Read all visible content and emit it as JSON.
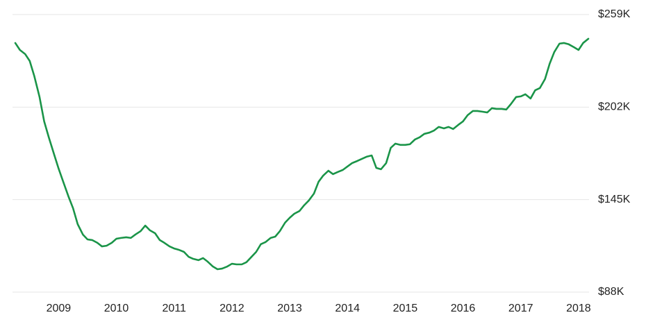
{
  "chart_data": {
    "type": "line",
    "color": "#1a9448",
    "grid": true,
    "x": [
      2008.25,
      2008.33,
      2008.42,
      2008.5,
      2008.58,
      2008.67,
      2008.75,
      2008.83,
      2008.92,
      2009,
      2009.08,
      2009.17,
      2009.25,
      2009.33,
      2009.42,
      2009.5,
      2009.58,
      2009.67,
      2009.75,
      2009.83,
      2009.92,
      2010,
      2010.08,
      2010.17,
      2010.25,
      2010.33,
      2010.42,
      2010.5,
      2010.58,
      2010.67,
      2010.75,
      2010.83,
      2010.92,
      2011,
      2011.08,
      2011.17,
      2011.25,
      2011.33,
      2011.42,
      2011.5,
      2011.58,
      2011.67,
      2011.75,
      2011.83,
      2011.92,
      2012,
      2012.08,
      2012.17,
      2012.25,
      2012.33,
      2012.42,
      2012.5,
      2012.58,
      2012.67,
      2012.75,
      2012.83,
      2012.92,
      2013,
      2013.08,
      2013.17,
      2013.25,
      2013.33,
      2013.42,
      2013.5,
      2013.58,
      2013.67,
      2013.75,
      2013.83,
      2013.92,
      2014,
      2014.08,
      2014.17,
      2014.25,
      2014.33,
      2014.42,
      2014.5,
      2014.58,
      2014.67,
      2014.75,
      2014.83,
      2014.92,
      2015,
      2015.08,
      2015.17,
      2015.25,
      2015.33,
      2015.42,
      2015.5,
      2015.58,
      2015.67,
      2015.75,
      2015.83,
      2015.92,
      2016,
      2016.08,
      2016.17,
      2016.25,
      2016.33,
      2016.42,
      2016.5,
      2016.58,
      2016.67,
      2016.75,
      2016.83,
      2016.92,
      2017,
      2017.08,
      2017.17,
      2017.25,
      2017.33,
      2017.42,
      2017.5,
      2017.58,
      2017.67,
      2017.75,
      2017.83,
      2017.92,
      2018,
      2018.08,
      2018.17
    ],
    "values": [
      241500,
      237200,
      234700,
      230400,
      221000,
      208200,
      193200,
      183400,
      173100,
      164100,
      156000,
      147000,
      139700,
      129900,
      123500,
      120500,
      120100,
      118400,
      116200,
      116600,
      118400,
      120900,
      121400,
      121800,
      121400,
      123500,
      125600,
      129000,
      126100,
      124300,
      120100,
      118400,
      116200,
      114900,
      114100,
      112800,
      109800,
      108500,
      107700,
      109000,
      106800,
      103800,
      102100,
      102500,
      103800,
      105500,
      105100,
      105100,
      106400,
      109400,
      112800,
      117500,
      118800,
      121400,
      122200,
      125600,
      130800,
      133800,
      136300,
      138000,
      141500,
      144400,
      148700,
      156000,
      159800,
      162800,
      160700,
      162000,
      163300,
      165400,
      167500,
      168800,
      170100,
      171400,
      172200,
      164500,
      163700,
      167500,
      176900,
      179500,
      178700,
      178700,
      179100,
      182100,
      183400,
      185500,
      186300,
      187600,
      189800,
      188900,
      189800,
      188500,
      191100,
      193200,
      197000,
      199600,
      199600,
      199200,
      198700,
      201300,
      200900,
      200900,
      200500,
      203900,
      208200,
      208600,
      209900,
      207300,
      212400,
      213700,
      219300,
      228700,
      235900,
      241100,
      241500,
      240700,
      238900,
      237200,
      241500,
      244100
    ],
    "xlim": [
      2008.25,
      2018.17
    ],
    "xticks": [
      2009,
      2010,
      2011,
      2012,
      2013,
      2014,
      2015,
      2016,
      2017,
      2018
    ],
    "ylim": [
      88000,
      259000
    ],
    "yticks": [
      {
        "value": 88000,
        "label": "$88K"
      },
      {
        "value": 145000,
        "label": "$145K"
      },
      {
        "value": 202000,
        "label": "$202K"
      },
      {
        "value": 259000,
        "label": "$259K"
      }
    ]
  }
}
